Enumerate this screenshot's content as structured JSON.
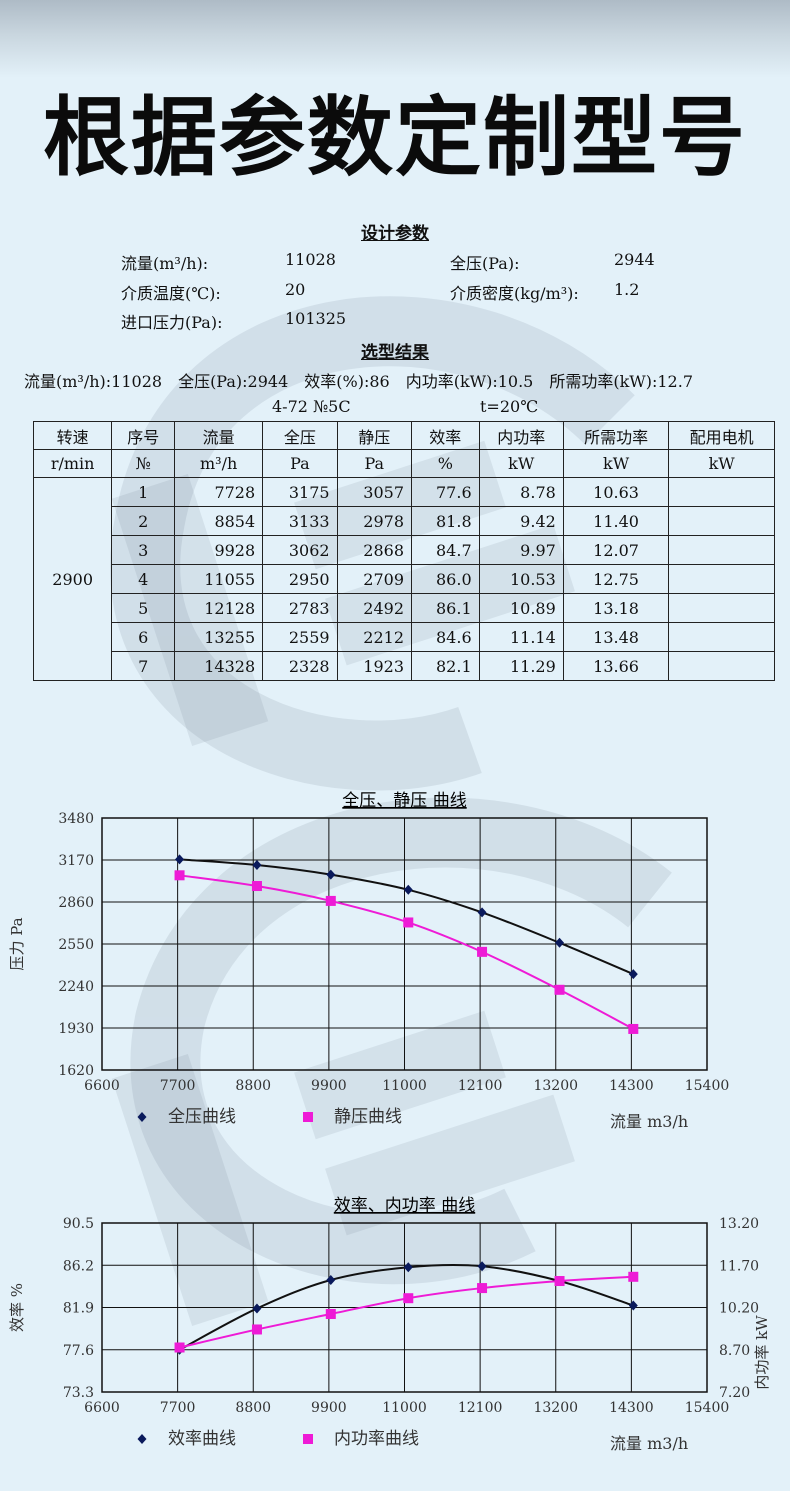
{
  "headline": "根据参数定制型号",
  "design": {
    "title": "设计参数",
    "rows": [
      {
        "k1": "流量(m³/h):",
        "v1": "11028",
        "k2": "全压(Pa):",
        "v2": "2944"
      },
      {
        "k1": "介质温度(℃):",
        "v1": "20",
        "k2": "介质密度(kg/m³):",
        "v2": "1.2"
      },
      {
        "k1": "进口压力(Pa):",
        "v1": "101325",
        "k2": "",
        "v2": ""
      }
    ]
  },
  "result": {
    "title": "选型结果",
    "summary": [
      "流量(m³/h):11028",
      "全压(Pa):2944",
      "效率(%):86",
      "内功率(kW):10.5",
      "所需功率(kW):12.7"
    ],
    "model": "4-72 №5C",
    "temp": "t=20℃"
  },
  "table": {
    "headers": [
      "转速",
      "序号",
      "流量",
      "全压",
      "静压",
      "效率",
      "内功率",
      "所需功率",
      "配用电机"
    ],
    "units": [
      "r/min",
      "№",
      "m³/h",
      "Pa",
      "Pa",
      "%",
      "kW",
      "kW",
      "kW"
    ],
    "speed": "2900",
    "rows": [
      [
        "1",
        "7728",
        "3175",
        "3057",
        "77.6",
        "8.78",
        "10.63",
        ""
      ],
      [
        "2",
        "8854",
        "3133",
        "2978",
        "81.8",
        "9.42",
        "11.40",
        ""
      ],
      [
        "3",
        "9928",
        "3062",
        "2868",
        "84.7",
        "9.97",
        "12.07",
        ""
      ],
      [
        "4",
        "11055",
        "2950",
        "2709",
        "86.0",
        "10.53",
        "12.75",
        ""
      ],
      [
        "5",
        "12128",
        "2783",
        "2492",
        "86.1",
        "10.89",
        "13.18",
        ""
      ],
      [
        "6",
        "13255",
        "2559",
        "2212",
        "84.6",
        "11.14",
        "13.48",
        ""
      ],
      [
        "7",
        "14328",
        "2328",
        "1923",
        "82.1",
        "11.29",
        "13.66",
        ""
      ]
    ]
  },
  "colors": {
    "series1": "#0a1a5c",
    "series2": "#ee1bd6",
    "line": "#111111"
  },
  "chart_data": [
    {
      "type": "line",
      "title": "全压、静压 曲线",
      "ylabel": "压力 Pa",
      "xlabel": "流量 m3/h",
      "xlim": [
        6600,
        15400
      ],
      "ylim": [
        1620,
        3480
      ],
      "xticks": [
        "6600",
        "7700",
        "8800",
        "9900",
        "11000",
        "12100",
        "13200",
        "14300",
        "15400"
      ],
      "yticks": [
        "3480",
        "3170",
        "2860",
        "2550",
        "2240",
        "1930",
        "1620"
      ],
      "grid": true,
      "legend_position": "bottom",
      "series": [
        {
          "name": "全压曲线",
          "marker": "diamond",
          "x": [
            7728,
            8854,
            9928,
            11055,
            12128,
            13255,
            14328
          ],
          "y": [
            3175,
            3133,
            3062,
            2950,
            2783,
            2559,
            2328
          ]
        },
        {
          "name": "静压曲线",
          "marker": "square",
          "x": [
            7728,
            8854,
            9928,
            11055,
            12128,
            13255,
            14328
          ],
          "y": [
            3057,
            2978,
            2868,
            2709,
            2492,
            2212,
            1923
          ]
        }
      ]
    },
    {
      "type": "line",
      "title": "效率、内功率 曲线",
      "ylabel": "效率 %",
      "y2label": "内功率 kW",
      "xlabel": "流量 m3/h",
      "xlim": [
        6600,
        15400
      ],
      "ylim": [
        73.3,
        90.5
      ],
      "y2lim": [
        7.2,
        13.2
      ],
      "xticks": [
        "6600",
        "7700",
        "8800",
        "9900",
        "11000",
        "12100",
        "13200",
        "14300",
        "15400"
      ],
      "yticks": [
        "90.5",
        "86.2",
        "81.9",
        "77.6",
        "73.3"
      ],
      "y2ticks": [
        "13.20",
        "11.70",
        "10.20",
        "8.70",
        "7.20"
      ],
      "grid": true,
      "legend_position": "bottom",
      "series": [
        {
          "name": "效率曲线",
          "marker": "diamond",
          "axis": "left",
          "x": [
            7728,
            8854,
            9928,
            11055,
            12128,
            13255,
            14328
          ],
          "y": [
            77.6,
            81.8,
            84.7,
            86.0,
            86.1,
            84.6,
            82.1
          ]
        },
        {
          "name": "内功率曲线",
          "marker": "square",
          "axis": "right",
          "x": [
            7728,
            8854,
            9928,
            11055,
            12128,
            13255,
            14328
          ],
          "y": [
            8.78,
            9.42,
            9.97,
            10.53,
            10.89,
            11.14,
            11.29
          ]
        }
      ]
    }
  ]
}
